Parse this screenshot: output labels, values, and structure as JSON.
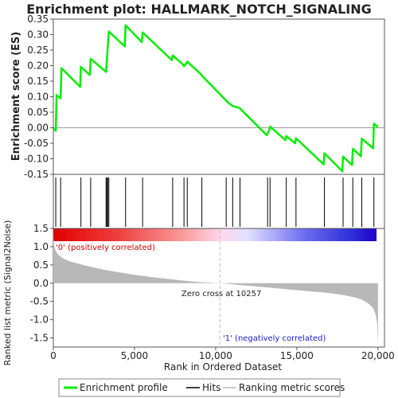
{
  "chart_data": {
    "type": "line",
    "title": "Enrichment plot: HALLMARK_NOTCH_SIGNALING",
    "colors": {
      "enrichment_line": "#00ee00",
      "hits": "#000000",
      "ranking_fill": "#b8b8b8",
      "zero_line": "#999999",
      "pos_label": "#cc0000",
      "neg_label": "#1c1ccc",
      "zero_cross": "#bbbbbb"
    },
    "panels": {
      "es": {
        "ylabel": "Enrichment score (ES)",
        "ylim": [
          -0.15,
          0.35
        ],
        "yticks": [
          -0.15,
          -0.1,
          -0.05,
          0.0,
          0.05,
          0.1,
          0.15,
          0.2,
          0.25,
          0.3,
          0.35
        ],
        "ytick_labels": [
          "-0.15",
          "-0.10",
          "-0.05",
          "0.00",
          "0.05",
          "0.10",
          "0.15",
          "0.20",
          "0.25",
          "0.30",
          "0.35"
        ],
        "series": [
          {
            "name": "Enrichment profile",
            "x": [
              0,
              150,
              200,
              450,
              500,
              1650,
              1700,
              2250,
              2300,
              3250,
              3300,
              3350,
              3420,
              4400,
              4450,
              5450,
              5500,
              7300,
              7350,
              8000,
              8050,
              8200,
              8250,
              9100,
              9150,
              10600,
              10650,
              11000,
              11050,
              11450,
              11500,
              13150,
              13200,
              13300,
              13350,
              14300,
              14350,
              14900,
              14950,
              16650,
              16700,
              17800,
              17850,
              18400,
              18450,
              18950,
              19000,
              19700,
              19750,
              20000
            ],
            "y": [
              0.0,
              -0.01,
              0.105,
              0.095,
              0.192,
              0.132,
              0.196,
              0.17,
              0.222,
              0.18,
              0.22,
              0.26,
              0.31,
              0.262,
              0.33,
              0.276,
              0.307,
              0.218,
              0.233,
              0.203,
              0.198,
              0.208,
              0.213,
              0.172,
              0.168,
              0.09,
              0.086,
              0.072,
              0.07,
              0.064,
              0.062,
              -0.024,
              -0.018,
              -0.008,
              0.004,
              -0.04,
              -0.027,
              -0.05,
              -0.034,
              -0.118,
              -0.082,
              -0.14,
              -0.093,
              -0.12,
              -0.068,
              -0.092,
              -0.035,
              -0.066,
              0.013,
              0.003
            ]
          }
        ]
      },
      "hits": {
        "legend_label": "Hits",
        "positions": [
          150,
          450,
          1700,
          2300,
          3250,
          3300,
          3350,
          3420,
          4450,
          5500,
          7350,
          8050,
          8250,
          9150,
          10650,
          11050,
          11500,
          13200,
          13350,
          14350,
          14950,
          16700,
          17850,
          18450,
          19000,
          19750
        ],
        "heat_gradient_stops": [
          {
            "at": 0.0,
            "color": "#e00000"
          },
          {
            "at": 0.2,
            "color": "#ef3f3f"
          },
          {
            "at": 0.4,
            "color": "#f99a9a"
          },
          {
            "at": 0.52,
            "color": "#ffd8ee"
          },
          {
            "at": 0.6,
            "color": "#e2e2ff"
          },
          {
            "at": 0.78,
            "color": "#6a6aee"
          },
          {
            "at": 0.92,
            "color": "#3030d8"
          },
          {
            "at": 1.0,
            "color": "#1a00cc"
          }
        ]
      },
      "ranking": {
        "ylabel": "Ranked list metric (Signal2Noise)",
        "ylim": [
          -1.75,
          1.5
        ],
        "yticks": [
          -1.5,
          -1.0,
          -0.5,
          0.0,
          0.5,
          1.0,
          1.5
        ],
        "ytick_labels": [
          "-1.5",
          "-1.0",
          "-0.5",
          "0.0",
          "0.5",
          "1.0",
          "1.5"
        ],
        "legend_label": "Ranking metric scores",
        "x": [
          0,
          20,
          60,
          150,
          300,
          600,
          1000,
          2000,
          3000,
          4000,
          5000,
          6000,
          7000,
          8000,
          9000,
          10257,
          11000,
          12000,
          13000,
          14000,
          15000,
          16000,
          17000,
          17800,
          18500,
          19000,
          19400,
          19700,
          19850,
          19950,
          20000
        ],
        "values": [
          1.55,
          1.2,
          1.0,
          0.88,
          0.78,
          0.68,
          0.6,
          0.48,
          0.38,
          0.3,
          0.23,
          0.17,
          0.12,
          0.07,
          0.03,
          0.0,
          -0.03,
          -0.07,
          -0.11,
          -0.15,
          -0.19,
          -0.23,
          -0.27,
          -0.32,
          -0.38,
          -0.45,
          -0.55,
          -0.68,
          -0.85,
          -1.1,
          -1.72
        ],
        "pos_label": "'0' (positively correlated)",
        "neg_label": "'1' (negatively correlated)",
        "zero_cross_text": "Zero cross at 10257",
        "zero_cross_x": 10257
      }
    },
    "xaxis": {
      "label": "Rank in Ordered Dataset",
      "xlim": [
        0,
        20400
      ],
      "ticks": [
        0,
        5000,
        10000,
        15000,
        20000
      ],
      "tick_labels": [
        "0",
        "5,000",
        "10,000",
        "15,000",
        "20,000"
      ]
    },
    "legend": {
      "entries": [
        "Enrichment profile",
        "Hits",
        "Ranking metric scores"
      ],
      "placement": "bottom"
    }
  }
}
